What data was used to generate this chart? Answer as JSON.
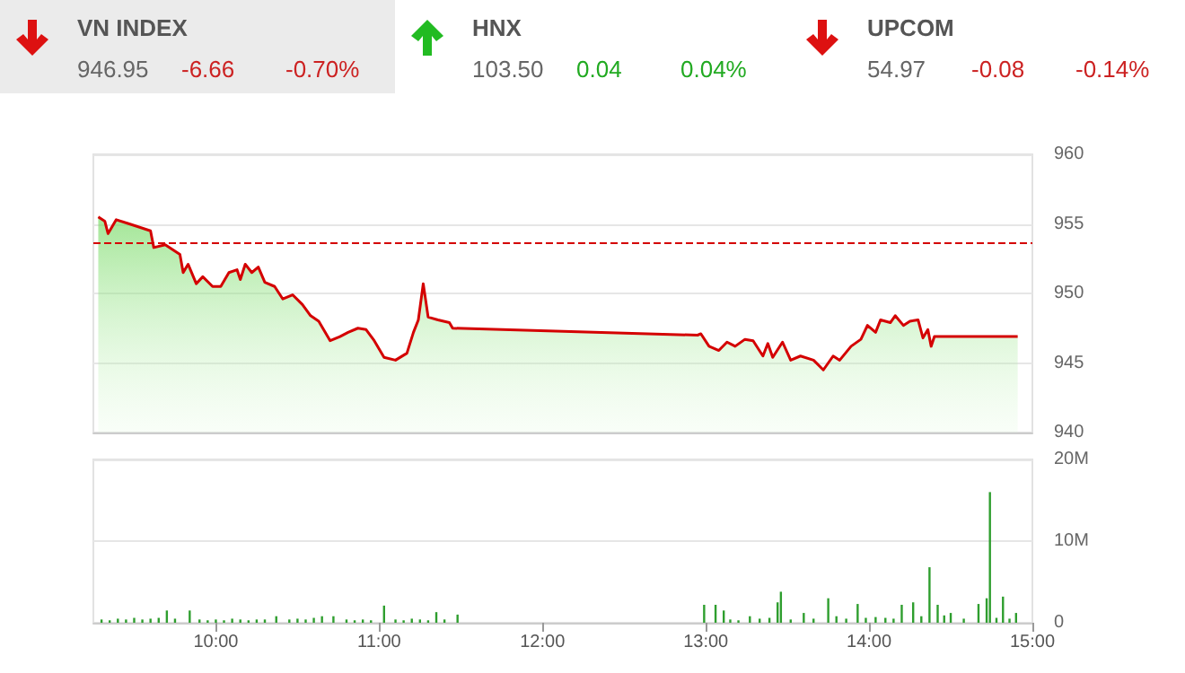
{
  "chart_data": [
    {
      "type": "other",
      "annotations": [
        "VN INDEX",
        "946.95",
        "-6.66",
        "-0.70%",
        "HNX",
        "103.50",
        "0.04",
        "0.04%",
        "UPCOM",
        "54.97",
        "-0.08",
        "-0.14%"
      ]
    },
    {
      "type": "area",
      "tick_labels": "y",
      "grid": "y",
      "marker": "none",
      "xlim": [
        9.25,
        15
      ],
      "ylim": [
        940,
        960
      ],
      "yticks": [
        940,
        945,
        950,
        955,
        960
      ],
      "series": [
        {
          "color": "#d40000",
          "x": [
            9.28,
            9.32,
            9.34,
            9.39,
            9.47,
            9.6,
            9.62,
            9.69,
            9.78,
            9.8,
            9.83,
            9.88,
            9.92,
            9.98,
            10.03,
            10.08,
            10.13,
            10.15,
            10.18,
            10.22,
            10.26,
            10.3,
            10.36,
            10.41,
            10.47,
            10.53,
            10.58,
            10.63,
            10.7,
            10.76,
            10.81,
            10.87,
            10.92,
            10.97,
            11.03,
            11.1,
            11.17,
            11.21,
            11.24,
            11.27,
            11.3,
            11.36,
            11.43,
            11.45,
            12.95,
            12.97,
            13.02,
            13.08,
            13.13,
            13.18,
            13.24,
            13.29,
            13.35,
            13.38,
            13.41,
            13.47,
            13.52,
            13.58,
            13.66,
            13.72,
            13.78,
            13.82,
            13.89,
            13.95,
            13.99,
            14.04,
            14.07,
            14.13,
            14.16,
            14.21,
            14.25,
            14.3,
            14.33,
            14.36,
            14.38,
            14.4,
            14.91
          ],
          "values": [
            955.5,
            955.2,
            954.3,
            955.3,
            955.0,
            954.5,
            953.3,
            953.5,
            952.8,
            951.5,
            952.1,
            950.7,
            951.2,
            950.5,
            950.5,
            951.5,
            951.7,
            951.0,
            952.1,
            951.5,
            951.9,
            950.8,
            950.5,
            949.6,
            949.9,
            949.2,
            948.4,
            948.0,
            946.6,
            946.9,
            947.2,
            947.5,
            947.4,
            946.6,
            945.4,
            945.2,
            945.7,
            947.2,
            948.1,
            950.7,
            948.3,
            948.1,
            947.9,
            947.5,
            947.0,
            947.1,
            946.2,
            945.9,
            946.5,
            946.2,
            946.7,
            946.6,
            945.5,
            946.4,
            945.4,
            946.5,
            945.2,
            945.5,
            945.2,
            944.5,
            945.5,
            945.2,
            946.2,
            946.7,
            947.7,
            947.2,
            948.1,
            947.9,
            948.4,
            947.7,
            948.0,
            948.1,
            946.8,
            947.4,
            946.2,
            946.9,
            946.9
          ]
        }
      ],
      "ref_lines": [
        {
          "axis": "y",
          "value": 953.6,
          "color": "#d40000",
          "line_style": "dashed"
        }
      ]
    },
    {
      "type": "bar",
      "grid": "y",
      "color": "#2e9e2e",
      "xlim": [
        9.25,
        15
      ],
      "xticks": [
        {
          "value": 10,
          "label": "10:00"
        },
        {
          "value": 11,
          "label": "11:00"
        },
        {
          "value": 12,
          "label": "12:00"
        },
        {
          "value": 13,
          "label": "13:00"
        },
        {
          "value": 14,
          "label": "14:00"
        },
        {
          "value": 15,
          "label": "15:00"
        }
      ],
      "ylim": [
        0,
        20
      ],
      "yticks": [
        0,
        {
          "value": 10,
          "label": "10M"
        },
        {
          "value": 20,
          "label": "20M"
        }
      ],
      "x": [
        9.3,
        9.35,
        9.4,
        9.45,
        9.5,
        9.55,
        9.6,
        9.65,
        9.7,
        9.75,
        9.84,
        9.9,
        9.95,
        10.0,
        10.05,
        10.1,
        10.15,
        10.2,
        10.25,
        10.3,
        10.37,
        10.45,
        10.5,
        10.55,
        10.6,
        10.65,
        10.72,
        10.8,
        10.85,
        10.9,
        10.95,
        11.03,
        11.1,
        11.15,
        11.2,
        11.25,
        11.3,
        11.35,
        11.4,
        11.48,
        12.99,
        13.06,
        13.11,
        13.15,
        13.2,
        13.27,
        13.33,
        13.39,
        13.44,
        13.46,
        13.52,
        13.6,
        13.66,
        13.75,
        13.8,
        13.86,
        13.93,
        13.98,
        14.04,
        14.1,
        14.15,
        14.2,
        14.27,
        14.32,
        14.37,
        14.42,
        14.46,
        14.5,
        14.58,
        14.67,
        14.72,
        14.74,
        14.78,
        14.82,
        14.86,
        14.9
      ],
      "values": [
        0.4,
        0.3,
        0.5,
        0.4,
        0.6,
        0.4,
        0.5,
        0.6,
        1.5,
        0.5,
        1.5,
        0.4,
        0.3,
        0.4,
        0.3,
        0.5,
        0.4,
        0.3,
        0.4,
        0.4,
        0.8,
        0.4,
        0.5,
        0.4,
        0.6,
        0.8,
        0.8,
        0.4,
        0.3,
        0.4,
        0.3,
        2.1,
        0.4,
        0.3,
        0.5,
        0.4,
        0.3,
        1.3,
        0.4,
        1.0,
        2.2,
        2.2,
        1.5,
        0.4,
        0.3,
        0.8,
        0.5,
        0.6,
        2.5,
        3.8,
        0.4,
        1.2,
        0.5,
        3.0,
        0.8,
        0.5,
        2.3,
        0.6,
        0.7,
        0.6,
        0.5,
        2.2,
        2.5,
        0.8,
        6.8,
        2.2,
        0.9,
        1.2,
        0.5,
        2.3,
        3.0,
        16.0,
        0.6,
        3.2,
        0.5,
        1.2
      ]
    }
  ]
}
